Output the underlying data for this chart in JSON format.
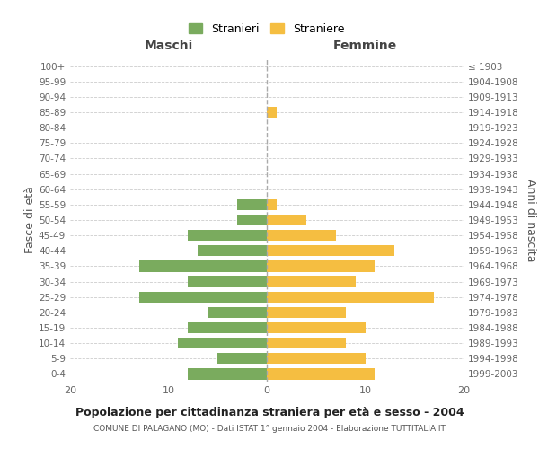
{
  "age_groups_bottom_to_top": [
    "0-4",
    "5-9",
    "10-14",
    "15-19",
    "20-24",
    "25-29",
    "30-34",
    "35-39",
    "40-44",
    "45-49",
    "50-54",
    "55-59",
    "60-64",
    "65-69",
    "70-74",
    "75-79",
    "80-84",
    "85-89",
    "90-94",
    "95-99",
    "100+"
  ],
  "birth_years_bottom_to_top": [
    "1999-2003",
    "1994-1998",
    "1989-1993",
    "1984-1988",
    "1979-1983",
    "1974-1978",
    "1969-1973",
    "1964-1968",
    "1959-1963",
    "1954-1958",
    "1949-1953",
    "1944-1948",
    "1939-1943",
    "1934-1938",
    "1929-1933",
    "1924-1928",
    "1919-1923",
    "1914-1918",
    "1909-1913",
    "1904-1908",
    "≤ 1903"
  ],
  "maschi_bottom_to_top": [
    8,
    5,
    9,
    8,
    6,
    13,
    8,
    13,
    7,
    8,
    3,
    3,
    0,
    0,
    0,
    0,
    0,
    0,
    0,
    0,
    0
  ],
  "femmine_bottom_to_top": [
    11,
    10,
    8,
    10,
    8,
    17,
    9,
    11,
    13,
    7,
    4,
    1,
    0,
    0,
    0,
    0,
    0,
    1,
    0,
    0,
    0
  ],
  "color_maschi": "#7aab5e",
  "color_femmine": "#f5be41",
  "title": "Popolazione per cittadinanza straniera per età e sesso - 2004",
  "subtitle": "COMUNE DI PALAGANO (MO) - Dati ISTAT 1° gennaio 2004 - Elaborazione TUTTITALIA.IT",
  "ylabel_left": "Fasce di età",
  "ylabel_right": "Anni di nascita",
  "label_maschi": "Maschi",
  "label_femmine": "Femmine",
  "legend_stranieri": "Stranieri",
  "legend_straniere": "Straniere",
  "xlim": 20,
  "background_color": "#ffffff",
  "grid_color": "#cccccc"
}
